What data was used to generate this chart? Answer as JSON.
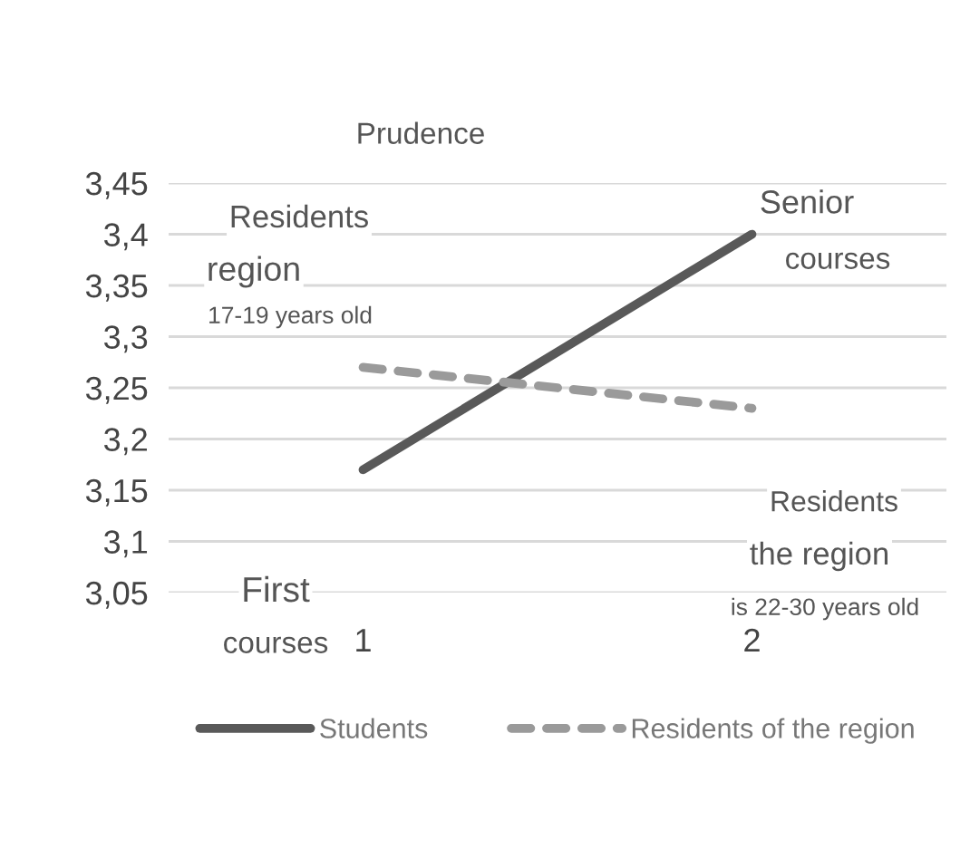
{
  "chart_data": {
    "type": "line",
    "title": "Prudence",
    "categories": [
      "1",
      "2"
    ],
    "series": [
      {
        "name": "Students",
        "color": "#595959",
        "values": [
          3.17,
          3.4
        ],
        "line_style": "solid"
      },
      {
        "name": "Residents of the region",
        "color": "#9a9a9a",
        "values": [
          3.27,
          3.23
        ],
        "line_style": "dashed"
      }
    ],
    "ylim": [
      3.05,
      3.45
    ],
    "yticks": [
      {
        "value": 3.05,
        "label": "3,05"
      },
      {
        "value": 3.1,
        "label": "3,1"
      },
      {
        "value": 3.15,
        "label": "3,15"
      },
      {
        "value": 3.2,
        "label": "3,2"
      },
      {
        "value": 3.25,
        "label": "3,25"
      },
      {
        "value": 3.3,
        "label": "3,3"
      },
      {
        "value": 3.35,
        "label": "3,35"
      },
      {
        "value": 3.4,
        "label": "3,4"
      },
      {
        "value": 3.45,
        "label": "3,45"
      }
    ],
    "grid": "y",
    "legend": "bottom",
    "marker": "none",
    "annotations": [
      "Residents",
      "region",
      "17-19 years old",
      "Senior",
      "courses",
      "Residents",
      "the region",
      "is 22-30 years old",
      "First",
      "courses"
    ]
  }
}
